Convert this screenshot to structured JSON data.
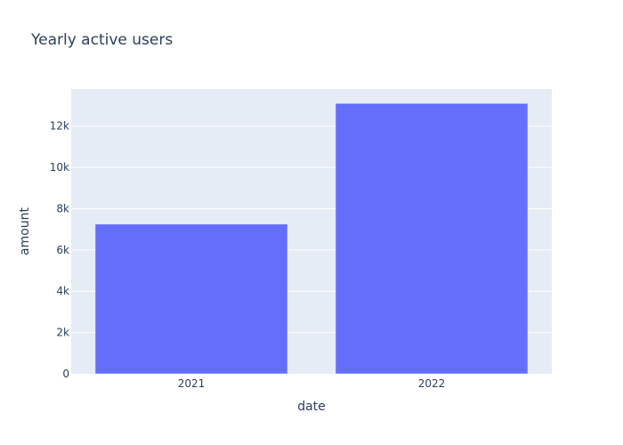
{
  "chart_data": {
    "type": "bar",
    "title": "Yearly active users",
    "xlabel": "date",
    "ylabel": "amount",
    "categories": [
      "2021",
      "2022"
    ],
    "values": [
      7250,
      13100
    ],
    "ylim": [
      0,
      13800
    ],
    "yticks": [
      0,
      2000,
      4000,
      6000,
      8000,
      10000,
      12000
    ],
    "ytick_labels": [
      "0",
      "2k",
      "4k",
      "6k",
      "8k",
      "10k",
      "12k"
    ],
    "grid": true,
    "colors": {
      "bar": "#636efa",
      "plot_background": "#e5ecf6",
      "text": "#2a3f5f",
      "grid": "#ffffff"
    }
  }
}
